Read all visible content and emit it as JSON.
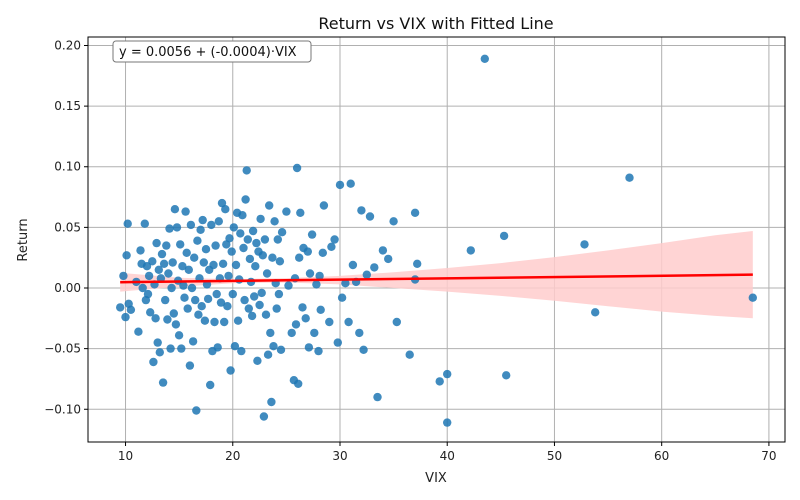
{
  "chart_data": {
    "type": "scatter",
    "title": "Return vs VIX with Fitted Line",
    "xlabel": "VIX",
    "ylabel": "Return",
    "xlim": [
      6.5,
      71.5
    ],
    "ylim": [
      -0.127,
      0.207
    ],
    "xticks": [
      10,
      20,
      30,
      40,
      50,
      60,
      70
    ],
    "yticks": [
      -0.1,
      -0.05,
      0.0,
      0.05,
      0.1,
      0.15,
      0.2
    ],
    "ytick_labels": [
      "−0.10",
      "−0.05",
      "0.00",
      "0.05",
      "0.10",
      "0.15",
      "0.20"
    ],
    "grid": true,
    "annotation": "y = 0.0056 + (-0.0004)·VIX",
    "colors": {
      "points": "#1f77b4",
      "line": "#ff0000",
      "band": "#ffcccc"
    },
    "fit": {
      "intercept": 0.0056,
      "slope": -0.0004,
      "x_range": [
        9.5,
        68.5
      ]
    },
    "band": {
      "x": [
        9.5,
        15,
        20,
        25,
        30,
        35,
        40,
        45,
        50,
        55,
        60,
        65,
        68.5
      ],
      "upper": [
        0.0125,
        0.0085,
        0.0073,
        0.0082,
        0.01,
        0.013,
        0.0165,
        0.0205,
        0.0255,
        0.031,
        0.037,
        0.0435,
        0.047
      ],
      "lower": [
        -0.003,
        0.001,
        0.004,
        0.0045,
        0.003,
        0.0,
        -0.003,
        -0.0065,
        -0.0105,
        -0.015,
        -0.0195,
        -0.023,
        -0.025
      ]
    },
    "points": [
      [
        9.5,
        -0.016
      ],
      [
        9.8,
        0.01
      ],
      [
        10.0,
        -0.024
      ],
      [
        10.1,
        0.027
      ],
      [
        10.2,
        0.053
      ],
      [
        10.3,
        -0.013
      ],
      [
        10.5,
        -0.018
      ],
      [
        11.0,
        0.005
      ],
      [
        11.2,
        -0.036
      ],
      [
        11.4,
        0.031
      ],
      [
        11.5,
        0.02
      ],
      [
        11.6,
        0.0
      ],
      [
        11.8,
        0.053
      ],
      [
        11.9,
        -0.01
      ],
      [
        12.0,
        0.018
      ],
      [
        12.1,
        -0.005
      ],
      [
        12.2,
        0.01
      ],
      [
        12.3,
        -0.02
      ],
      [
        12.5,
        0.022
      ],
      [
        12.6,
        -0.061
      ],
      [
        12.7,
        0.003
      ],
      [
        12.8,
        -0.025
      ],
      [
        12.9,
        0.037
      ],
      [
        13.0,
        -0.045
      ],
      [
        13.1,
        0.015
      ],
      [
        13.2,
        -0.053
      ],
      [
        13.3,
        0.008
      ],
      [
        13.4,
        0.028
      ],
      [
        13.5,
        -0.078
      ],
      [
        13.6,
        0.02
      ],
      [
        13.7,
        -0.01
      ],
      [
        13.8,
        0.035
      ],
      [
        13.9,
        -0.026
      ],
      [
        14.0,
        0.012
      ],
      [
        14.1,
        0.049
      ],
      [
        14.2,
        -0.05
      ],
      [
        14.3,
        0.0
      ],
      [
        14.4,
        0.021
      ],
      [
        14.5,
        -0.021
      ],
      [
        14.6,
        0.065
      ],
      [
        14.7,
        -0.03
      ],
      [
        14.8,
        0.05
      ],
      [
        14.9,
        0.006
      ],
      [
        15.0,
        -0.039
      ],
      [
        15.1,
        0.036
      ],
      [
        15.2,
        -0.05
      ],
      [
        15.3,
        0.018
      ],
      [
        15.4,
        0.002
      ],
      [
        15.5,
        -0.008
      ],
      [
        15.6,
        0.063
      ],
      [
        15.7,
        0.029
      ],
      [
        15.8,
        -0.017
      ],
      [
        15.9,
        0.015
      ],
      [
        16.0,
        -0.064
      ],
      [
        16.1,
        0.052
      ],
      [
        16.2,
        0.0
      ],
      [
        16.3,
        -0.044
      ],
      [
        16.4,
        0.025
      ],
      [
        16.5,
        -0.01
      ],
      [
        16.6,
        -0.101
      ],
      [
        16.7,
        0.039
      ],
      [
        16.8,
        -0.022
      ],
      [
        16.9,
        0.008
      ],
      [
        17.0,
        0.048
      ],
      [
        17.1,
        -0.015
      ],
      [
        17.2,
        0.056
      ],
      [
        17.3,
        0.021
      ],
      [
        17.4,
        -0.027
      ],
      [
        17.5,
        0.032
      ],
      [
        17.6,
        0.003
      ],
      [
        17.7,
        -0.009
      ],
      [
        17.8,
        0.015
      ],
      [
        17.9,
        -0.08
      ],
      [
        18.0,
        0.052
      ],
      [
        18.1,
        -0.052
      ],
      [
        18.2,
        0.019
      ],
      [
        18.3,
        -0.028
      ],
      [
        18.4,
        0.035
      ],
      [
        18.5,
        -0.005
      ],
      [
        18.6,
        -0.049
      ],
      [
        18.7,
        0.055
      ],
      [
        18.8,
        0.008
      ],
      [
        18.9,
        -0.012
      ],
      [
        19.0,
        0.07
      ],
      [
        19.1,
        0.02
      ],
      [
        19.2,
        -0.028
      ],
      [
        19.3,
        0.065
      ],
      [
        19.4,
        0.036
      ],
      [
        19.5,
        -0.015
      ],
      [
        19.6,
        0.01
      ],
      [
        19.7,
        0.041
      ],
      [
        19.8,
        -0.068
      ],
      [
        19.9,
        0.03
      ],
      [
        20.0,
        -0.005
      ],
      [
        20.1,
        0.05
      ],
      [
        20.2,
        -0.048
      ],
      [
        20.3,
        0.019
      ],
      [
        20.4,
        0.062
      ],
      [
        20.5,
        -0.027
      ],
      [
        20.6,
        0.007
      ],
      [
        20.7,
        0.045
      ],
      [
        20.8,
        -0.052
      ],
      [
        20.9,
        0.06
      ],
      [
        21.0,
        0.033
      ],
      [
        21.1,
        -0.01
      ],
      [
        21.2,
        0.073
      ],
      [
        21.3,
        0.097
      ],
      [
        21.4,
        0.04
      ],
      [
        21.5,
        -0.017
      ],
      [
        21.6,
        0.024
      ],
      [
        21.7,
        0.005
      ],
      [
        21.8,
        -0.023
      ],
      [
        21.9,
        0.047
      ],
      [
        22.0,
        -0.007
      ],
      [
        22.1,
        0.018
      ],
      [
        22.2,
        0.037
      ],
      [
        22.3,
        -0.06
      ],
      [
        22.4,
        0.03
      ],
      [
        22.5,
        -0.014
      ],
      [
        22.6,
        0.057
      ],
      [
        22.7,
        -0.004
      ],
      [
        22.8,
        0.027
      ],
      [
        22.9,
        -0.106
      ],
      [
        23.0,
        0.04
      ],
      [
        23.1,
        -0.022
      ],
      [
        23.2,
        0.012
      ],
      [
        23.3,
        -0.055
      ],
      [
        23.4,
        0.068
      ],
      [
        23.5,
        -0.037
      ],
      [
        23.6,
        -0.094
      ],
      [
        23.7,
        0.025
      ],
      [
        23.8,
        -0.048
      ],
      [
        23.9,
        0.055
      ],
      [
        24.0,
        0.004
      ],
      [
        24.1,
        -0.017
      ],
      [
        24.2,
        0.04
      ],
      [
        24.3,
        -0.005
      ],
      [
        24.4,
        0.022
      ],
      [
        24.5,
        -0.051
      ],
      [
        24.6,
        0.046
      ],
      [
        25.0,
        0.063
      ],
      [
        25.2,
        0.002
      ],
      [
        25.5,
        -0.037
      ],
      [
        25.7,
        -0.076
      ],
      [
        25.8,
        0.008
      ],
      [
        25.9,
        -0.03
      ],
      [
        26.0,
        0.099
      ],
      [
        26.1,
        -0.079
      ],
      [
        26.2,
        0.025
      ],
      [
        26.3,
        0.062
      ],
      [
        26.5,
        -0.016
      ],
      [
        26.6,
        0.033
      ],
      [
        26.8,
        -0.025
      ],
      [
        27.0,
        0.03
      ],
      [
        27.1,
        -0.049
      ],
      [
        27.2,
        0.012
      ],
      [
        27.4,
        0.044
      ],
      [
        27.6,
        -0.037
      ],
      [
        27.8,
        0.003
      ],
      [
        28.0,
        -0.052
      ],
      [
        28.1,
        0.01
      ],
      [
        28.2,
        -0.018
      ],
      [
        28.4,
        0.029
      ],
      [
        28.5,
        0.068
      ],
      [
        29.0,
        -0.028
      ],
      [
        29.2,
        0.034
      ],
      [
        29.5,
        0.04
      ],
      [
        29.8,
        -0.045
      ],
      [
        30.0,
        0.085
      ],
      [
        30.2,
        -0.008
      ],
      [
        30.5,
        0.004
      ],
      [
        30.8,
        -0.028
      ],
      [
        31.0,
        0.086
      ],
      [
        31.2,
        0.019
      ],
      [
        31.5,
        0.005
      ],
      [
        31.8,
        -0.037
      ],
      [
        32.0,
        0.064
      ],
      [
        32.2,
        -0.051
      ],
      [
        32.5,
        0.011
      ],
      [
        32.8,
        0.059
      ],
      [
        33.2,
        0.017
      ],
      [
        33.5,
        -0.09
      ],
      [
        34.0,
        0.031
      ],
      [
        34.5,
        0.024
      ],
      [
        35.0,
        0.055
      ],
      [
        35.3,
        -0.028
      ],
      [
        36.5,
        -0.055
      ],
      [
        37.0,
        0.062
      ],
      [
        37.2,
        0.02
      ],
      [
        37.0,
        0.007
      ],
      [
        39.3,
        -0.077
      ],
      [
        40.0,
        -0.071
      ],
      [
        40.0,
        -0.111
      ],
      [
        42.2,
        0.031
      ],
      [
        43.5,
        0.189
      ],
      [
        45.3,
        0.043
      ],
      [
        45.5,
        -0.072
      ],
      [
        52.8,
        0.036
      ],
      [
        53.8,
        -0.02
      ],
      [
        57.0,
        0.091
      ],
      [
        68.5,
        -0.008
      ]
    ]
  }
}
